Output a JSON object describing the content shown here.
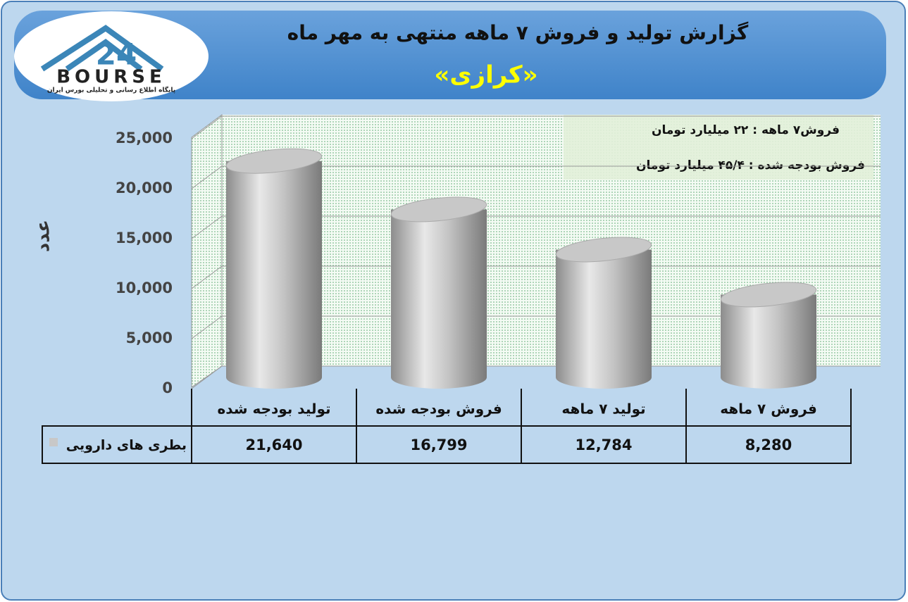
{
  "logo": {
    "mark": "24",
    "name": "BOURSE",
    "tagline": "پایگاه اطلاع رسانی و تحلیلی بورس ایران"
  },
  "chart_data": {
    "type": "bar",
    "title": "گزارش تولید و فروش ۷ ماهه منتهی به مهر ماه",
    "subtitle": "«کرازی»",
    "y_label": "عدد",
    "annotations": [
      "فروش۷ ماهه : ۲۲  میلیارد تومان",
      "فروش بودجه شده : ۴۵/۴ میلیارد تومان"
    ],
    "categories": [
      "تولید بودجه شده",
      "فروش بودجه شده",
      "تولید ۷ ماهه",
      "فروش ۷ ماهه"
    ],
    "series": [
      {
        "name": "بطری های دارویی",
        "color": "#c8c8c8",
        "values": [
          21640,
          16799,
          12784,
          8280
        ],
        "value_labels": [
          "21,640",
          "16,799",
          "12,784",
          "8,280"
        ]
      }
    ],
    "ylim": [
      0,
      25000
    ],
    "yticks": [
      0,
      {
        "value": 5000,
        "label": "5,000"
      },
      {
        "value": 10000,
        "label": "10,000"
      },
      {
        "value": 15000,
        "label": "15,000"
      },
      {
        "value": 20000,
        "label": "20,000"
      },
      {
        "value": 25000,
        "label": "25,000"
      }
    ],
    "grid": true
  }
}
